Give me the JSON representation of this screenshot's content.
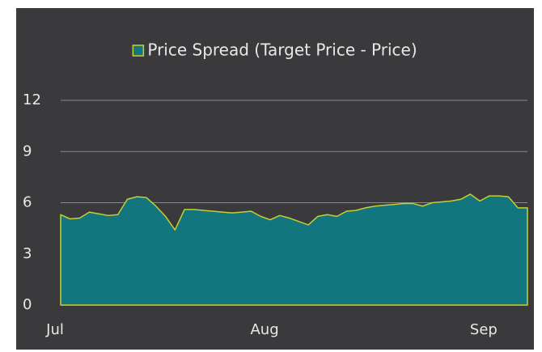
{
  "chart_data": {
    "type": "area",
    "legend_position": "top",
    "categories": [
      "Jul",
      null,
      null,
      null,
      null,
      null,
      null,
      null,
      null,
      null,
      null,
      null,
      null,
      null,
      null,
      null,
      null,
      null,
      null,
      null,
      null,
      null,
      "Aug",
      null,
      null,
      null,
      null,
      null,
      null,
      null,
      null,
      null,
      null,
      null,
      null,
      null,
      null,
      null,
      null,
      null,
      null,
      null,
      null,
      null,
      null,
      "Sep",
      null,
      null,
      null,
      null
    ],
    "series": [
      {
        "name": "Price Spread (Target Price - Price)",
        "color": "#13767f",
        "line_color": "#c8cf2e",
        "values": [
          5.3,
          5.05,
          5.1,
          5.45,
          5.35,
          5.25,
          5.3,
          6.2,
          6.35,
          6.3,
          5.8,
          5.2,
          4.4,
          5.6,
          5.6,
          5.55,
          5.5,
          5.45,
          5.4,
          5.45,
          5.5,
          5.2,
          5.0,
          5.25,
          5.1,
          4.9,
          4.7,
          5.2,
          5.3,
          5.2,
          5.5,
          5.55,
          5.7,
          5.8,
          5.85,
          5.9,
          5.95,
          5.95,
          5.8,
          6.0,
          6.05,
          6.1,
          6.2,
          6.5,
          6.1,
          6.4,
          6.4,
          6.35,
          5.7,
          5.7
        ]
      }
    ],
    "ylim": [
      0,
      12
    ],
    "yticks": [
      0,
      3,
      6,
      9,
      12
    ],
    "grid": true
  }
}
